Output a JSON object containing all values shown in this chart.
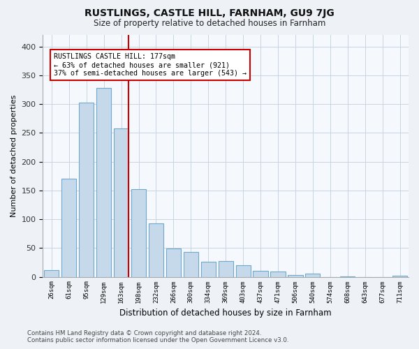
{
  "title": "RUSTLINGS, CASTLE HILL, FARNHAM, GU9 7JG",
  "subtitle": "Size of property relative to detached houses in Farnham",
  "xlabel": "Distribution of detached houses by size in Farnham",
  "ylabel": "Number of detached properties",
  "bar_labels": [
    "26sqm",
    "61sqm",
    "95sqm",
    "129sqm",
    "163sqm",
    "198sqm",
    "232sqm",
    "266sqm",
    "300sqm",
    "334sqm",
    "369sqm",
    "403sqm",
    "437sqm",
    "471sqm",
    "506sqm",
    "540sqm",
    "574sqm",
    "608sqm",
    "643sqm",
    "677sqm",
    "711sqm"
  ],
  "bar_values": [
    11,
    170,
    302,
    328,
    258,
    152,
    93,
    49,
    43,
    26,
    27,
    20,
    10,
    9,
    3,
    5,
    0,
    1,
    0,
    0,
    2
  ],
  "bar_color": "#c6d9ea",
  "bar_edge_color": "#6ea8cc",
  "vline_color": "#cc0000",
  "annotation_text": "RUSTLINGS CASTLE HILL: 177sqm\n← 63% of detached houses are smaller (921)\n37% of semi-detached houses are larger (543) →",
  "annotation_box_color": "white",
  "annotation_box_edge": "#cc0000",
  "ylim": [
    0,
    420
  ],
  "yticks": [
    0,
    50,
    100,
    150,
    200,
    250,
    300,
    350,
    400
  ],
  "footer_line1": "Contains HM Land Registry data © Crown copyright and database right 2024.",
  "footer_line2": "Contains public sector information licensed under the Open Government Licence v3.0.",
  "bg_color": "#eef2f7",
  "plot_bg_color": "#f5f8fc",
  "grid_color": "#c8d4e0",
  "title_fontsize": 10,
  "subtitle_fontsize": 8.5
}
